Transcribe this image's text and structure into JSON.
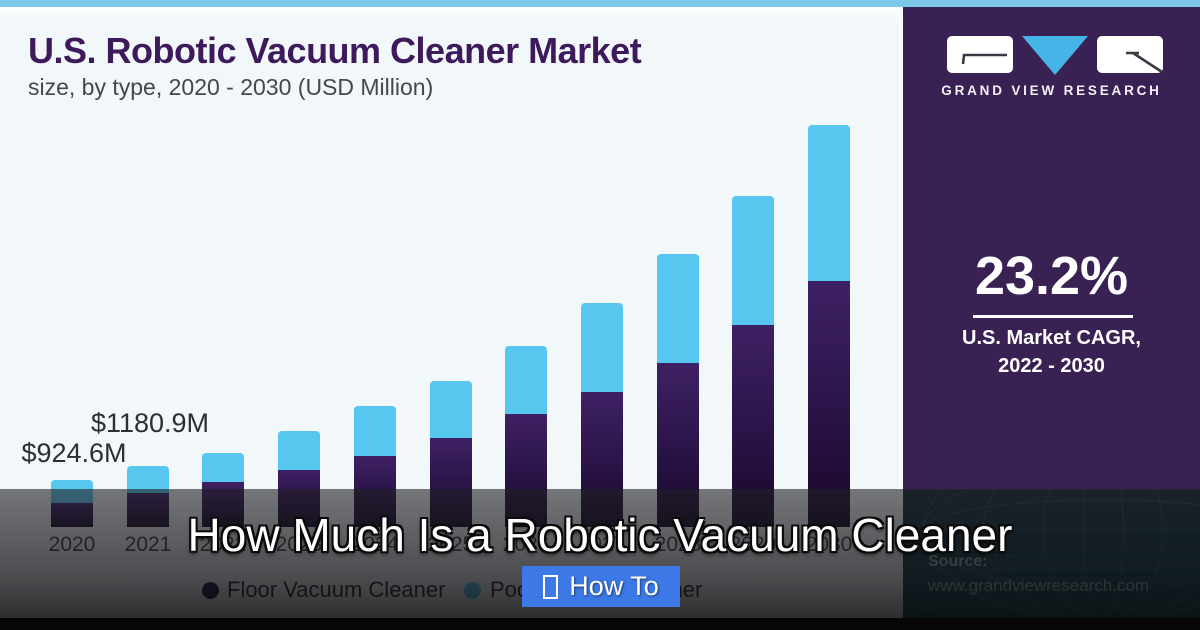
{
  "header": {
    "title": "U.S. Robotic Vacuum Cleaner Market",
    "subtitle": "size, by type, 2020 - 2030 (USD Million)"
  },
  "chart_data": {
    "type": "bar",
    "stacked": true,
    "title": "U.S. Robotic Vacuum Cleaner Market size, by type, 2020 - 2030 (USD Million)",
    "xlabel": "",
    "ylabel": "USD Million",
    "categories": [
      "2020",
      "2021",
      "2022",
      "2023",
      "2024",
      "2025",
      "2026",
      "2027",
      "2028",
      "2029",
      "2030"
    ],
    "series": [
      {
        "name": "Floor Vacuum Cleaner",
        "color": "#2d1548",
        "values": [
          470,
          660,
          880,
          1110,
          1385,
          1735,
          2200,
          2630,
          3200,
          3940,
          4800
        ]
      },
      {
        "name": "Pool Vacuum Cleaner",
        "color": "#58c7f0",
        "values": [
          455,
          521,
          565,
          760,
          975,
          1110,
          1330,
          1740,
          2125,
          2515,
          3040
        ]
      }
    ],
    "totals_estimated": [
      924.6,
      1180.9,
      1445,
      1870,
      2360,
      2845,
      3530,
      4370,
      5325,
      6455,
      7840
    ],
    "data_labels": [
      {
        "category_index": 0,
        "text": "$924.6M"
      },
      {
        "category_index": 1,
        "text": "$1180.9M"
      }
    ],
    "legend_position": "bottom",
    "grid": false,
    "note": "segment values estimated from bar pixel heights; only the two data labels are printed on the chart"
  },
  "sidebar": {
    "logo_icon": "gvr-logo-icon",
    "brand_name": "GRAND VIEW RESEARCH",
    "cagr": {
      "value": "23.2%",
      "line1": "U.S. Market CAGR,",
      "line2": "2022 - 2030"
    },
    "source": {
      "label": "Source:",
      "url": "www.grandviewresearch.com"
    }
  },
  "overlay": {
    "title": "How Much Is a Robotic Vacuum Cleaner",
    "button_icon": "missing-glyph-box-icon",
    "button_label": "How To"
  },
  "colors": {
    "top_strip": "#7ec8e9",
    "bar_pool_blue": "#58c7f0",
    "bar_floor_purple": "#2d1548",
    "sidebar_purple": "#3a2153",
    "logo_triangle_blue": "#47b4e8",
    "button_blue": "#3c79e6",
    "title_purple": "#3d1a5c",
    "source_text": "#97a5ad"
  }
}
